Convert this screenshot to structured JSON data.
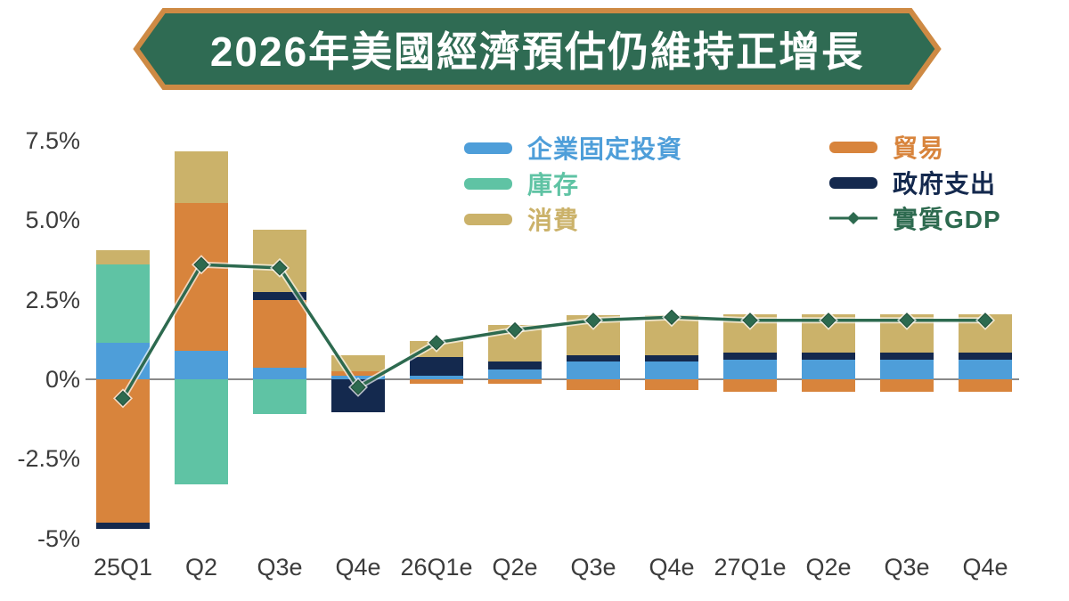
{
  "title": {
    "text": "2026年美國經濟預估仍維持正增長"
  },
  "colors": {
    "banner_fill": "#2F6B53",
    "banner_border": "#CE8A44",
    "title_text": "#FFFFFF",
    "axis_text": "#3C3C3C",
    "zero_line": "#8A8A8A",
    "fixed_investment": "#4E9ED9",
    "inventory": "#5FC3A4",
    "consumption": "#CBB26A",
    "trade": "#D8843C",
    "government": "#14294E",
    "gdp_line": "#2D6A4F"
  },
  "legend": {
    "left": [
      {
        "label": "企業固定投資",
        "color": "#4E9ED9",
        "symbol": "swatch"
      },
      {
        "label": "庫存",
        "color": "#5FC3A4",
        "symbol": "swatch"
      },
      {
        "label": "消費",
        "color": "#CBB26A",
        "symbol": "swatch"
      }
    ],
    "right": [
      {
        "label": "貿易",
        "color": "#D8843C",
        "symbol": "swatch"
      },
      {
        "label": "政府支出",
        "color": "#14294E",
        "symbol": "swatch"
      },
      {
        "label": "實質GDP",
        "color": "#2D6A4F",
        "symbol": "line-diamond"
      }
    ]
  },
  "chart_data": {
    "type": "bar",
    "subtype": "stacked-contribution-bars-with-line-overlay",
    "unit": "percentage points",
    "categories": [
      "25Q1",
      "Q2",
      "Q3e",
      "Q4e",
      "26Q1e",
      "Q2e",
      "Q3e",
      "Q4e",
      "27Q1e",
      "Q2e",
      "Q3e",
      "Q4e"
    ],
    "series": [
      {
        "name": "企業固定投資",
        "key": "fixed_investment",
        "color": "#4E9ED9",
        "values": [
          1.15,
          0.9,
          0.35,
          0.1,
          0.1,
          0.3,
          0.55,
          0.55,
          0.6,
          0.6,
          0.6,
          0.6
        ]
      },
      {
        "name": "庫存",
        "key": "inventory",
        "color": "#5FC3A4",
        "values": [
          2.45,
          -3.3,
          -1.1,
          0,
          0,
          0,
          0,
          0,
          0,
          0,
          0,
          0
        ]
      },
      {
        "name": "貿易",
        "key": "trade",
        "color": "#D8843C",
        "values": [
          -4.5,
          4.65,
          2.15,
          0.15,
          -0.15,
          -0.15,
          -0.35,
          -0.35,
          -0.4,
          -0.4,
          -0.4,
          -0.4
        ]
      },
      {
        "name": "政府支出",
        "key": "government",
        "color": "#14294E",
        "values": [
          -0.2,
          0,
          0.25,
          -1.05,
          0.6,
          0.25,
          0.2,
          0.2,
          0.25,
          0.25,
          0.25,
          0.25
        ]
      },
      {
        "name": "消費",
        "key": "consumption",
        "color": "#CBB26A",
        "values": [
          0.45,
          1.6,
          1.95,
          0.5,
          0.5,
          1.15,
          1.25,
          1.25,
          1.2,
          1.2,
          1.2,
          1.2
        ]
      }
    ],
    "line": {
      "name": "實質GDP",
      "color": "#2D6A4F",
      "values": [
        -0.6,
        3.6,
        3.5,
        -0.25,
        1.15,
        1.55,
        1.85,
        1.95,
        1.85,
        1.85,
        1.85,
        1.85
      ]
    },
    "yticks": [
      {
        "label": "7.5%",
        "value": 7.5
      },
      {
        "label": "5.0%",
        "value": 5.0
      },
      {
        "label": "2.5%",
        "value": 2.5
      },
      {
        "label": "0%",
        "value": 0
      },
      {
        "label": "-2.5%",
        "value": -2.5
      },
      {
        "label": "-5%",
        "value": -5
      }
    ],
    "ylim": [
      -5.43,
      8.0
    ],
    "grid": false,
    "legend_position": "top-inside, two columns"
  }
}
